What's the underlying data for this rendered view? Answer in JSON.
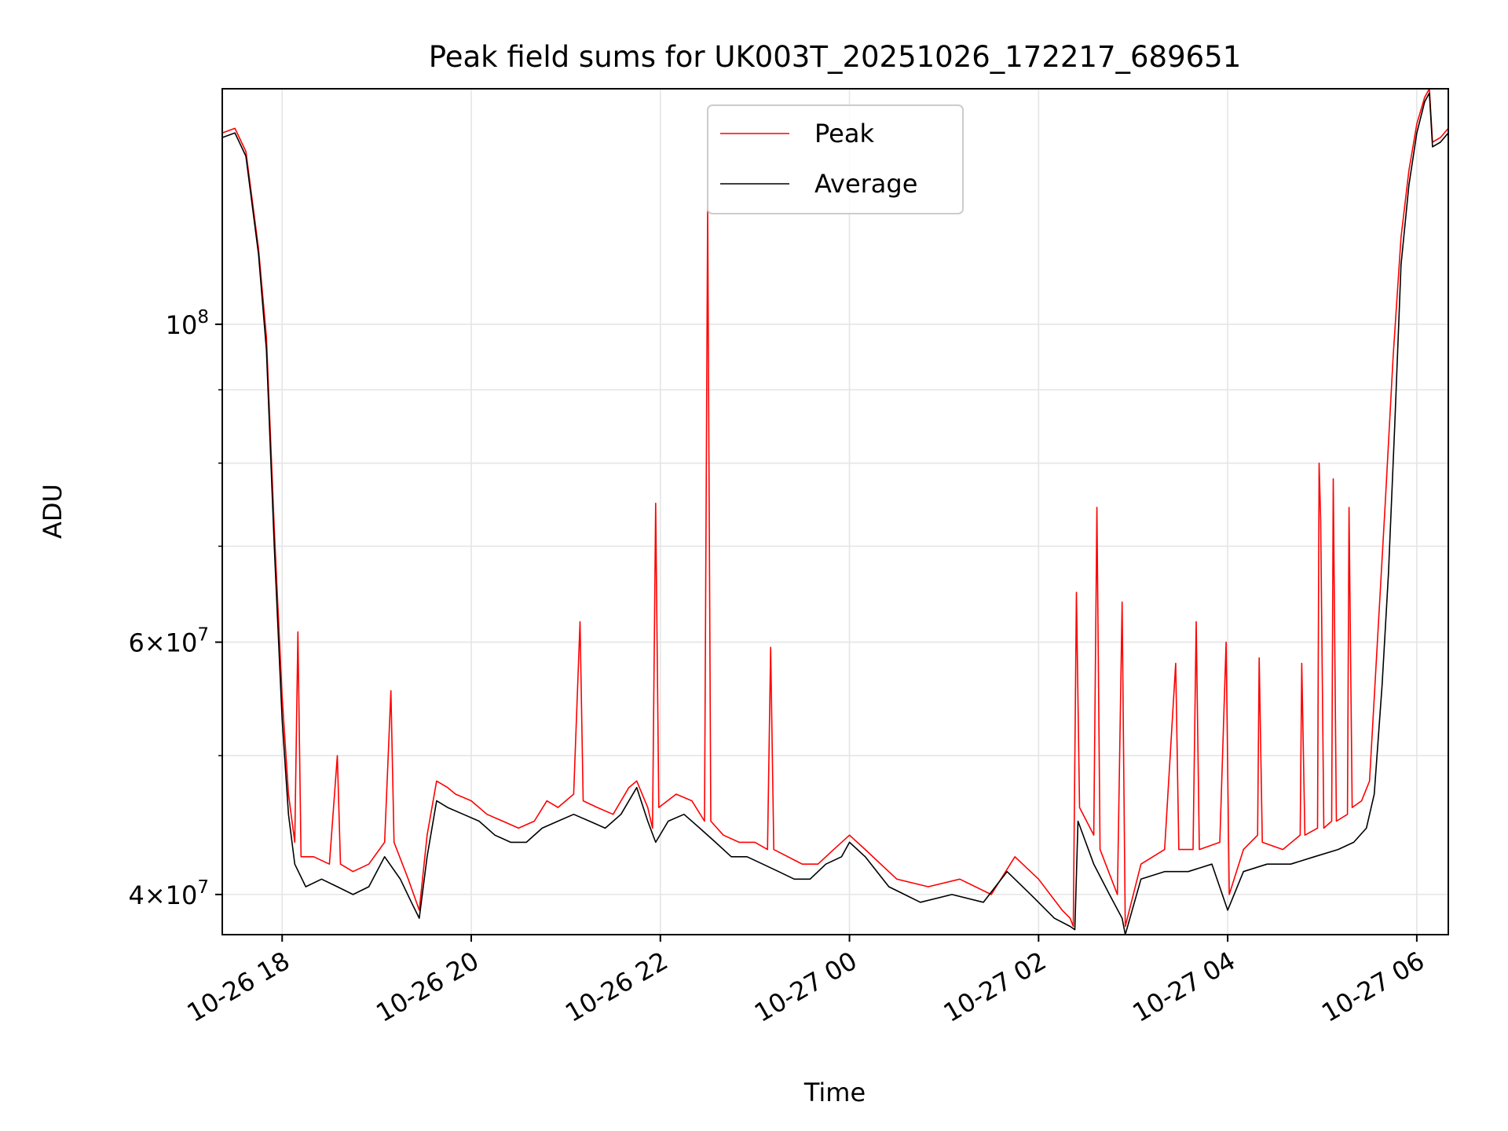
{
  "chart_data": {
    "type": "line",
    "title": "Peak field sums for UK003T_20251026_172217_689651",
    "xlabel": "Time",
    "ylabel": "ADU",
    "x_range": [
      "2025-10-26 17:22",
      "2025-10-27 06:20"
    ],
    "ylim": [
      37500000,
      146000000
    ],
    "yscale": "log",
    "grid": true,
    "legend_position": "upper center",
    "x_ticks": [
      {
        "t": "2025-10-26 18:00",
        "label": "10-26 18"
      },
      {
        "t": "2025-10-26 20:00",
        "label": "10-26 20"
      },
      {
        "t": "2025-10-26 22:00",
        "label": "10-26 22"
      },
      {
        "t": "2025-10-27 00:00",
        "label": "10-27 00"
      },
      {
        "t": "2025-10-27 02:00",
        "label": "10-27 02"
      },
      {
        "t": "2025-10-27 04:00",
        "label": "10-27 04"
      },
      {
        "t": "2025-10-27 06:00",
        "label": "10-27 06"
      }
    ],
    "y_major_ticks": [
      {
        "value": 40000000,
        "base": "4×10",
        "exp": "7"
      },
      {
        "value": 60000000,
        "base": "6×10",
        "exp": "7"
      },
      {
        "value": 100000000,
        "base": "10",
        "exp": "8"
      }
    ],
    "y_minor_ticks": [
      50000000,
      70000000,
      80000000,
      90000000
    ],
    "series": [
      {
        "name": "Peak",
        "color": "#ff0000",
        "points": [
          [
            "2025-10-26 17:22",
            136000000
          ],
          [
            "2025-10-26 17:30",
            137000000
          ],
          [
            "2025-10-26 17:37",
            132000000
          ],
          [
            "2025-10-26 17:45",
            113000000
          ],
          [
            "2025-10-26 17:50",
            98000000
          ],
          [
            "2025-10-26 17:55",
            72000000
          ],
          [
            "2025-10-26 18:00",
            55000000
          ],
          [
            "2025-10-26 18:04",
            47000000
          ],
          [
            "2025-10-26 18:08",
            43500000
          ],
          [
            "2025-10-26 18:10",
            61000000
          ],
          [
            "2025-10-26 18:12",
            42500000
          ],
          [
            "2025-10-26 18:20",
            42500000
          ],
          [
            "2025-10-26 18:30",
            42000000
          ],
          [
            "2025-10-26 18:35",
            50000000
          ],
          [
            "2025-10-26 18:37",
            42000000
          ],
          [
            "2025-10-26 18:45",
            41500000
          ],
          [
            "2025-10-26 18:55",
            42000000
          ],
          [
            "2025-10-26 19:05",
            43500000
          ],
          [
            "2025-10-26 19:09",
            55500000
          ],
          [
            "2025-10-26 19:11",
            43500000
          ],
          [
            "2025-10-26 19:20",
            41000000
          ],
          [
            "2025-10-26 19:27",
            39000000
          ],
          [
            "2025-10-26 19:32",
            44000000
          ],
          [
            "2025-10-26 19:38",
            48000000
          ],
          [
            "2025-10-26 19:45",
            47500000
          ],
          [
            "2025-10-26 19:50",
            47000000
          ],
          [
            "2025-10-26 20:00",
            46500000
          ],
          [
            "2025-10-26 20:10",
            45500000
          ],
          [
            "2025-10-26 20:20",
            45000000
          ],
          [
            "2025-10-26 20:30",
            44500000
          ],
          [
            "2025-10-26 20:40",
            45000000
          ],
          [
            "2025-10-26 20:48",
            46500000
          ],
          [
            "2025-10-26 20:55",
            46000000
          ],
          [
            "2025-10-26 21:05",
            47000000
          ],
          [
            "2025-10-26 21:09",
            62000000
          ],
          [
            "2025-10-26 21:11",
            46500000
          ],
          [
            "2025-10-26 21:20",
            46000000
          ],
          [
            "2025-10-26 21:30",
            45500000
          ],
          [
            "2025-10-26 21:40",
            47500000
          ],
          [
            "2025-10-26 21:45",
            48000000
          ],
          [
            "2025-10-26 21:52",
            46000000
          ],
          [
            "2025-10-26 21:55",
            44500000
          ],
          [
            "2025-10-26 21:57",
            75000000
          ],
          [
            "2025-10-26 21:59",
            46000000
          ],
          [
            "2025-10-26 22:10",
            47000000
          ],
          [
            "2025-10-26 22:20",
            46500000
          ],
          [
            "2025-10-26 22:28",
            45000000
          ],
          [
            "2025-10-26 22:30",
            121000000
          ],
          [
            "2025-10-26 22:32",
            45000000
          ],
          [
            "2025-10-26 22:40",
            44000000
          ],
          [
            "2025-10-26 22:50",
            43500000
          ],
          [
            "2025-10-26 23:00",
            43500000
          ],
          [
            "2025-10-26 23:08",
            43000000
          ],
          [
            "2025-10-26 23:10",
            59500000
          ],
          [
            "2025-10-26 23:12",
            43000000
          ],
          [
            "2025-10-26 23:30",
            42000000
          ],
          [
            "2025-10-26 23:40",
            42000000
          ],
          [
            "2025-10-26 23:50",
            43000000
          ],
          [
            "2025-10-27 00:00",
            44000000
          ],
          [
            "2025-10-27 00:10",
            43000000
          ],
          [
            "2025-10-27 00:30",
            41000000
          ],
          [
            "2025-10-27 00:50",
            40500000
          ],
          [
            "2025-10-27 01:10",
            41000000
          ],
          [
            "2025-10-27 01:30",
            40000000
          ],
          [
            "2025-10-27 01:45",
            42500000
          ],
          [
            "2025-10-27 02:00",
            41000000
          ],
          [
            "2025-10-27 02:15",
            39000000
          ],
          [
            "2025-10-27 02:20",
            38500000
          ],
          [
            "2025-10-27 02:22",
            38000000
          ],
          [
            "2025-10-27 02:24",
            65000000
          ],
          [
            "2025-10-27 02:26",
            46000000
          ],
          [
            "2025-10-27 02:35",
            44000000
          ],
          [
            "2025-10-27 02:37",
            74500000
          ],
          [
            "2025-10-27 02:39",
            43000000
          ],
          [
            "2025-10-27 02:50",
            40000000
          ],
          [
            "2025-10-27 02:53",
            64000000
          ],
          [
            "2025-10-27 02:55",
            38000000
          ],
          [
            "2025-10-27 03:05",
            42000000
          ],
          [
            "2025-10-27 03:20",
            43000000
          ],
          [
            "2025-10-27 03:27",
            58000000
          ],
          [
            "2025-10-27 03:29",
            43000000
          ],
          [
            "2025-10-27 03:38",
            43000000
          ],
          [
            "2025-10-27 03:40",
            62000000
          ],
          [
            "2025-10-27 03:42",
            43000000
          ],
          [
            "2025-10-27 03:55",
            43500000
          ],
          [
            "2025-10-27 03:59",
            60000000
          ],
          [
            "2025-10-27 04:01",
            40000000
          ],
          [
            "2025-10-27 04:10",
            43000000
          ],
          [
            "2025-10-27 04:19",
            44000000
          ],
          [
            "2025-10-27 04:20",
            58500000
          ],
          [
            "2025-10-27 04:22",
            43500000
          ],
          [
            "2025-10-27 04:35",
            43000000
          ],
          [
            "2025-10-27 04:46",
            44000000
          ],
          [
            "2025-10-27 04:47",
            58000000
          ],
          [
            "2025-10-27 04:49",
            44000000
          ],
          [
            "2025-10-27 04:57",
            44500000
          ],
          [
            "2025-10-27 04:58",
            80000000
          ],
          [
            "2025-10-27 04:59",
            73000000
          ],
          [
            "2025-10-27 05:01",
            44500000
          ],
          [
            "2025-10-27 05:06",
            45000000
          ],
          [
            "2025-10-27 05:07",
            78000000
          ],
          [
            "2025-10-27 05:09",
            45000000
          ],
          [
            "2025-10-27 05:16",
            45500000
          ],
          [
            "2025-10-27 05:17",
            74500000
          ],
          [
            "2025-10-27 05:19",
            46000000
          ],
          [
            "2025-10-27 05:25",
            46500000
          ],
          [
            "2025-10-27 05:30",
            48000000
          ],
          [
            "2025-10-27 05:35",
            60000000
          ],
          [
            "2025-10-27 05:40",
            75000000
          ],
          [
            "2025-10-27 05:45",
            95000000
          ],
          [
            "2025-10-27 05:50",
            115000000
          ],
          [
            "2025-10-27 05:55",
            128000000
          ],
          [
            "2025-10-27 06:00",
            138000000
          ],
          [
            "2025-10-27 06:05",
            144000000
          ],
          [
            "2025-10-27 06:08",
            146000000
          ],
          [
            "2025-10-27 06:10",
            134000000
          ],
          [
            "2025-10-27 06:15",
            135000000
          ],
          [
            "2025-10-27 06:20",
            137000000
          ]
        ]
      },
      {
        "name": "Average",
        "color": "#000000",
        "points": [
          [
            "2025-10-26 17:22",
            135000000
          ],
          [
            "2025-10-26 17:30",
            136000000
          ],
          [
            "2025-10-26 17:37",
            131000000
          ],
          [
            "2025-10-26 17:45",
            112000000
          ],
          [
            "2025-10-26 17:50",
            96000000
          ],
          [
            "2025-10-26 17:55",
            70000000
          ],
          [
            "2025-10-26 18:00",
            53000000
          ],
          [
            "2025-10-26 18:04",
            45500000
          ],
          [
            "2025-10-26 18:08",
            42000000
          ],
          [
            "2025-10-26 18:15",
            40500000
          ],
          [
            "2025-10-26 18:25",
            41000000
          ],
          [
            "2025-10-26 18:35",
            40500000
          ],
          [
            "2025-10-26 18:45",
            40000000
          ],
          [
            "2025-10-26 18:55",
            40500000
          ],
          [
            "2025-10-26 19:05",
            42500000
          ],
          [
            "2025-10-26 19:15",
            41000000
          ],
          [
            "2025-10-26 19:22",
            39500000
          ],
          [
            "2025-10-26 19:27",
            38500000
          ],
          [
            "2025-10-26 19:32",
            42500000
          ],
          [
            "2025-10-26 19:38",
            46500000
          ],
          [
            "2025-10-26 19:45",
            46000000
          ],
          [
            "2025-10-26 19:55",
            45500000
          ],
          [
            "2025-10-26 20:05",
            45000000
          ],
          [
            "2025-10-26 20:15",
            44000000
          ],
          [
            "2025-10-26 20:25",
            43500000
          ],
          [
            "2025-10-26 20:35",
            43500000
          ],
          [
            "2025-10-26 20:45",
            44500000
          ],
          [
            "2025-10-26 20:55",
            45000000
          ],
          [
            "2025-10-26 21:05",
            45500000
          ],
          [
            "2025-10-26 21:15",
            45000000
          ],
          [
            "2025-10-26 21:25",
            44500000
          ],
          [
            "2025-10-26 21:35",
            45500000
          ],
          [
            "2025-10-26 21:45",
            47500000
          ],
          [
            "2025-10-26 21:52",
            45000000
          ],
          [
            "2025-10-26 21:57",
            43500000
          ],
          [
            "2025-10-26 22:05",
            45000000
          ],
          [
            "2025-10-26 22:15",
            45500000
          ],
          [
            "2025-10-26 22:25",
            44500000
          ],
          [
            "2025-10-26 22:35",
            43500000
          ],
          [
            "2025-10-26 22:45",
            42500000
          ],
          [
            "2025-10-26 22:55",
            42500000
          ],
          [
            "2025-10-26 23:05",
            42000000
          ],
          [
            "2025-10-26 23:15",
            41500000
          ],
          [
            "2025-10-26 23:25",
            41000000
          ],
          [
            "2025-10-26 23:35",
            41000000
          ],
          [
            "2025-10-26 23:45",
            42000000
          ],
          [
            "2025-10-26 23:55",
            42500000
          ],
          [
            "2025-10-27 00:00",
            43500000
          ],
          [
            "2025-10-27 00:10",
            42500000
          ],
          [
            "2025-10-27 00:25",
            40500000
          ],
          [
            "2025-10-27 00:45",
            39500000
          ],
          [
            "2025-10-27 01:05",
            40000000
          ],
          [
            "2025-10-27 01:25",
            39500000
          ],
          [
            "2025-10-27 01:40",
            41500000
          ],
          [
            "2025-10-27 01:55",
            40000000
          ],
          [
            "2025-10-27 02:10",
            38500000
          ],
          [
            "2025-10-27 02:20",
            38000000
          ],
          [
            "2025-10-27 02:23",
            37800000
          ],
          [
            "2025-10-27 02:25",
            45000000
          ],
          [
            "2025-10-27 02:35",
            42000000
          ],
          [
            "2025-10-27 02:45",
            40000000
          ],
          [
            "2025-10-27 02:53",
            38500000
          ],
          [
            "2025-10-27 02:55",
            37500000
          ],
          [
            "2025-10-27 03:05",
            41000000
          ],
          [
            "2025-10-27 03:20",
            41500000
          ],
          [
            "2025-10-27 03:35",
            41500000
          ],
          [
            "2025-10-27 03:50",
            42000000
          ],
          [
            "2025-10-27 04:00",
            39000000
          ],
          [
            "2025-10-27 04:10",
            41500000
          ],
          [
            "2025-10-27 04:25",
            42000000
          ],
          [
            "2025-10-27 04:40",
            42000000
          ],
          [
            "2025-10-27 04:55",
            42500000
          ],
          [
            "2025-10-27 05:10",
            43000000
          ],
          [
            "2025-10-27 05:20",
            43500000
          ],
          [
            "2025-10-27 05:28",
            44500000
          ],
          [
            "2025-10-27 05:33",
            47000000
          ],
          [
            "2025-10-27 05:38",
            56000000
          ],
          [
            "2025-10-27 05:42",
            67000000
          ],
          [
            "2025-10-27 05:46",
            85000000
          ],
          [
            "2025-10-27 05:50",
            110000000
          ],
          [
            "2025-10-27 05:55",
            125000000
          ],
          [
            "2025-10-27 06:00",
            136000000
          ],
          [
            "2025-10-27 06:05",
            143000000
          ],
          [
            "2025-10-27 06:08",
            145000000
          ],
          [
            "2025-10-27 06:10",
            133000000
          ],
          [
            "2025-10-27 06:15",
            134000000
          ],
          [
            "2025-10-27 06:20",
            136000000
          ]
        ]
      }
    ]
  }
}
